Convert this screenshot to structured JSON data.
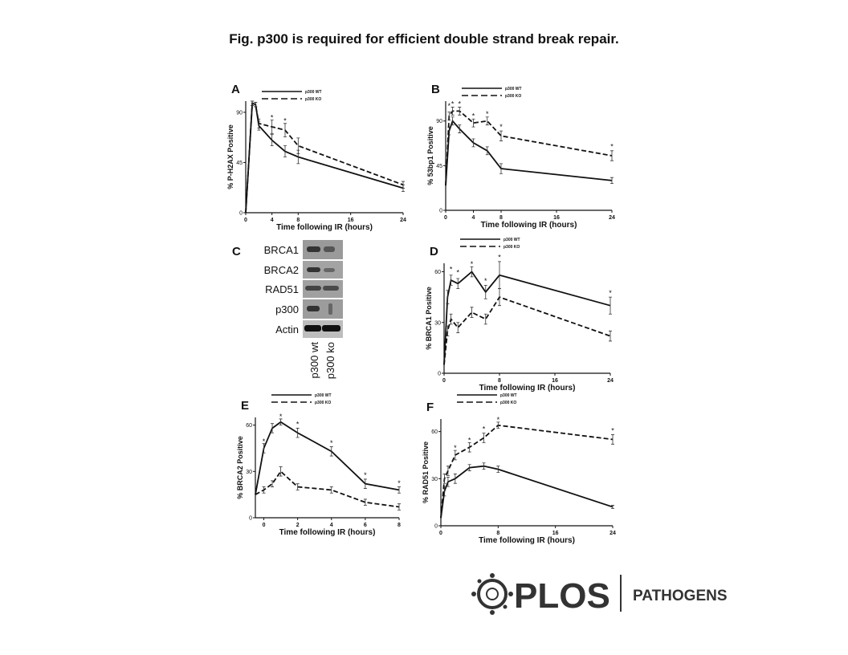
{
  "title": "Fig. p300 is required for efficient double strand break repair.",
  "chart_data": [
    {
      "type": "line",
      "panel": "A",
      "xlabel": "Time following IR (hours)",
      "ylabel": "% P-H2AX Positive",
      "xlim": [
        0,
        24
      ],
      "xticks": [
        0,
        4,
        8,
        16,
        24
      ],
      "ylim": [
        0,
        100
      ],
      "yticks": [
        0,
        45,
        90
      ],
      "series": [
        {
          "name": "p300 WT",
          "dash": false,
          "color": "#111111",
          "x": [
            0,
            1,
            1.5,
            2,
            4,
            6,
            8,
            24
          ],
          "values": [
            0,
            98,
            97,
            78,
            65,
            55,
            50,
            22
          ],
          "errors": [
            0,
            2,
            2,
            4,
            5,
            5,
            6,
            3
          ]
        },
        {
          "name": "p300 KO",
          "dash": true,
          "color": "#111111",
          "x": [
            0,
            1,
            1.5,
            2,
            4,
            6,
            8,
            24
          ],
          "values": [
            0,
            98,
            97,
            80,
            77,
            74,
            60,
            25
          ],
          "errors": [
            0,
            2,
            2,
            4,
            6,
            6,
            7,
            3
          ]
        }
      ],
      "annotations": [
        {
          "text": "*",
          "x": 4,
          "y": 86
        },
        {
          "text": "*",
          "x": 6,
          "y": 83
        }
      ]
    },
    {
      "type": "line",
      "panel": "B",
      "xlabel": "Time following IR (hours)",
      "ylabel": "% 53bp1 Positive",
      "xlim": [
        0,
        24
      ],
      "xticks": [
        0,
        4,
        8,
        16,
        24
      ],
      "ylim": [
        0,
        110
      ],
      "yticks": [
        0,
        45,
        90
      ],
      "series": [
        {
          "name": "p300 WT",
          "dash": false,
          "color": "#111111",
          "x": [
            0,
            0.5,
            1,
            2,
            4,
            6,
            8,
            24
          ],
          "values": [
            25,
            80,
            90,
            82,
            68,
            60,
            42,
            30
          ],
          "errors": [
            0,
            4,
            4,
            4,
            4,
            4,
            5,
            3
          ]
        },
        {
          "name": "p300 KO",
          "dash": true,
          "color": "#111111",
          "x": [
            0,
            0.5,
            1,
            2,
            4,
            6,
            8,
            24
          ],
          "values": [
            25,
            95,
            100,
            100,
            88,
            90,
            75,
            55
          ],
          "errors": [
            0,
            4,
            4,
            4,
            4,
            4,
            5,
            5
          ]
        }
      ],
      "annotations": [
        {
          "text": "*",
          "x": 0.5,
          "y": 106
        },
        {
          "text": "*",
          "x": 1,
          "y": 108
        },
        {
          "text": "*",
          "x": 2,
          "y": 108
        },
        {
          "text": "*",
          "x": 4,
          "y": 96
        },
        {
          "text": "*",
          "x": 6,
          "y": 98
        },
        {
          "text": "*",
          "x": 8,
          "y": 85
        },
        {
          "text": "*",
          "x": 24,
          "y": 65
        }
      ]
    },
    {
      "type": "line",
      "panel": "D",
      "xlabel": "Time following IR (hours)",
      "ylabel": "% BRCA1 Positive",
      "xlim": [
        0,
        24
      ],
      "xticks": [
        0,
        8,
        16,
        24
      ],
      "ylim": [
        0,
        65
      ],
      "yticks": [
        0,
        30,
        60
      ],
      "series": [
        {
          "name": "p300 WT",
          "dash": false,
          "color": "#111111",
          "x": [
            0,
            0.5,
            1,
            2,
            4,
            6,
            8,
            24
          ],
          "values": [
            5,
            45,
            55,
            53,
            60,
            48,
            58,
            40
          ],
          "errors": [
            0,
            4,
            3,
            3,
            3,
            4,
            8,
            5
          ]
        },
        {
          "name": "p300 KO",
          "dash": true,
          "color": "#111111",
          "x": [
            0,
            0.5,
            1,
            2,
            4,
            6,
            8,
            24
          ],
          "values": [
            5,
            25,
            32,
            27,
            36,
            32,
            45,
            22
          ],
          "errors": [
            0,
            3,
            3,
            3,
            3,
            3,
            5,
            3
          ]
        }
      ],
      "annotations": [
        {
          "text": "*",
          "x": 1,
          "y": 62
        },
        {
          "text": "*",
          "x": 2,
          "y": 60
        },
        {
          "text": "*",
          "x": 4,
          "y": 65
        },
        {
          "text": "*",
          "x": 6,
          "y": 55
        },
        {
          "text": "*",
          "x": 8,
          "y": 69
        },
        {
          "text": "*",
          "x": 24,
          "y": 48
        }
      ]
    },
    {
      "type": "line",
      "panel": "E",
      "xlabel": "Time following IR (hours)",
      "ylabel": "% BRCA2 Positive",
      "xlim": [
        -0.5,
        8
      ],
      "xticks": [
        0,
        2,
        4,
        6,
        8
      ],
      "ylim": [
        0,
        65
      ],
      "yticks": [
        0,
        30,
        60
      ],
      "series": [
        {
          "name": "p300 WT",
          "dash": false,
          "color": "#111111",
          "x": [
            -0.5,
            0,
            0.5,
            1,
            2,
            4,
            6,
            8
          ],
          "values": [
            15,
            45,
            58,
            62,
            55,
            43,
            22,
            18
          ],
          "errors": [
            0,
            3,
            3,
            2,
            3,
            3,
            3,
            2
          ]
        },
        {
          "name": "p300 KO",
          "dash": true,
          "color": "#111111",
          "x": [
            -0.5,
            0,
            0.5,
            1,
            2,
            4,
            6,
            8
          ],
          "values": [
            15,
            18,
            22,
            30,
            20,
            18,
            10,
            7
          ],
          "errors": [
            0,
            2,
            2,
            3,
            2,
            2,
            2,
            2
          ]
        }
      ],
      "annotations": [
        {
          "text": "*",
          "x": 0,
          "y": 50
        },
        {
          "text": "*",
          "x": 1,
          "y": 66
        },
        {
          "text": "*",
          "x": 2,
          "y": 61
        },
        {
          "text": "*",
          "x": 4,
          "y": 49
        },
        {
          "text": "*",
          "x": 6,
          "y": 28
        },
        {
          "text": "*",
          "x": 8,
          "y": 23
        }
      ]
    },
    {
      "type": "line",
      "panel": "F",
      "xlabel": "Time following IR (hours)",
      "ylabel": "% RAD51 Positive",
      "xlim": [
        0,
        24
      ],
      "xticks": [
        0,
        8,
        16,
        24
      ],
      "ylim": [
        0,
        68
      ],
      "yticks": [
        0,
        30,
        60
      ],
      "series": [
        {
          "name": "p300 WT",
          "dash": false,
          "color": "#111111",
          "x": [
            0,
            0.5,
            1,
            2,
            4,
            6,
            8,
            24
          ],
          "values": [
            5,
            22,
            28,
            30,
            37,
            38,
            36,
            12
          ],
          "errors": [
            0,
            3,
            3,
            3,
            2,
            2,
            2,
            1
          ]
        },
        {
          "name": "p300 KO",
          "dash": true,
          "color": "#111111",
          "x": [
            0,
            0.5,
            1,
            2,
            4,
            6,
            8,
            24
          ],
          "values": [
            5,
            30,
            35,
            45,
            50,
            56,
            64,
            55
          ],
          "errors": [
            0,
            3,
            3,
            3,
            3,
            3,
            2,
            3
          ]
        }
      ],
      "annotations": [
        {
          "text": "*",
          "x": 2,
          "y": 50
        },
        {
          "text": "*",
          "x": 4,
          "y": 55
        },
        {
          "text": "*",
          "x": 6,
          "y": 62
        },
        {
          "text": "*",
          "x": 8,
          "y": 68
        },
        {
          "text": "*",
          "x": 24,
          "y": 61
        }
      ]
    }
  ],
  "blot": {
    "panel": "C",
    "rows": [
      "BRCA1",
      "BRCA2",
      "RAD51",
      "p300",
      "Actin"
    ],
    "lanes": [
      "p300 wt",
      "p300 ko"
    ]
  },
  "footer": {
    "brand": "PLOS",
    "journal": "PATHOGENS"
  }
}
